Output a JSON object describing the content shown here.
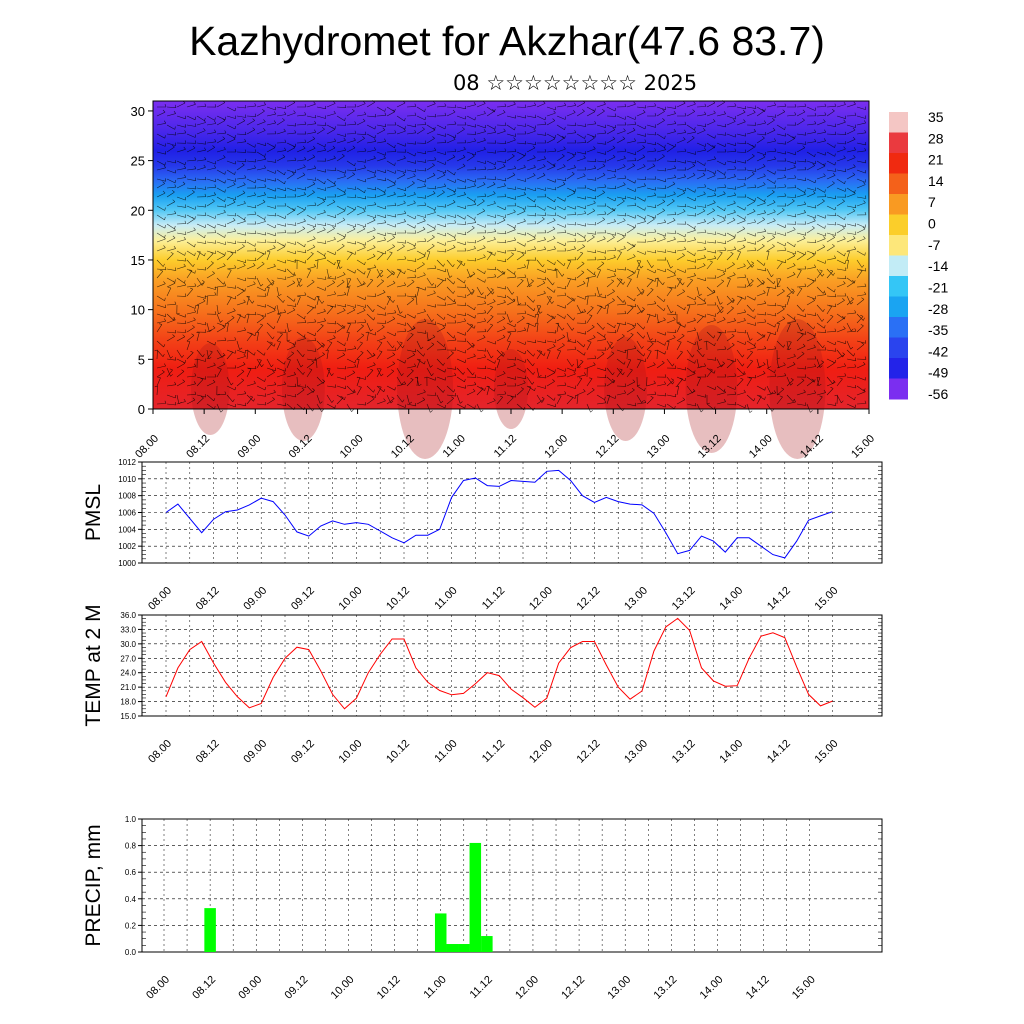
{
  "title": "Kazhydromet for Akzhar(47.6 83.7)",
  "subtitle": "08 ☆☆☆☆☆☆☆☆ 2025",
  "time_labels": [
    "08.00",
    "08.12",
    "09.00",
    "09.12",
    "10.00",
    "10.12",
    "11.00",
    "11.12",
    "12.00",
    "12.12",
    "13.00",
    "13.12",
    "14.00",
    "14.12",
    "15.00"
  ],
  "chart_data": [
    {
      "type": "heatmap",
      "name": "temperature-wind-cross-section",
      "x": "time (3-hourly, 08.00 to 15.00)",
      "ylim": [
        0,
        31
      ],
      "yticks": [
        0,
        5,
        10,
        15,
        20,
        25,
        30
      ],
      "colorbar": {
        "labels": [
          "35",
          "28",
          "21",
          "14",
          "7",
          "0",
          "-7",
          "-14",
          "-21",
          "-28",
          "-35",
          "-42",
          "-49",
          "-56"
        ],
        "colors": [
          "#f4c6c4",
          "#ea3a3f",
          "#f02a10",
          "#f4611a",
          "#f99a22",
          "#fbce2a",
          "#fde77a",
          "#c2ecf6",
          "#34c6f6",
          "#1aa4f2",
          "#2a70f5",
          "#2a44ee",
          "#2323e9",
          "#7b2ef0"
        ]
      },
      "level_colors": [
        [
          0,
          "#e4242c"
        ],
        [
          4,
          "#f01d12"
        ],
        [
          7,
          "#f34317"
        ],
        [
          10,
          "#f6741c"
        ],
        [
          13,
          "#fa9f24"
        ],
        [
          15,
          "#fdcd2c"
        ],
        [
          17,
          "#fbf09b"
        ],
        [
          18.5,
          "#c8ecf6"
        ],
        [
          20,
          "#52c8f5"
        ],
        [
          21.5,
          "#1aa0f2"
        ],
        [
          23,
          "#2a6af4"
        ],
        [
          24.5,
          "#2638ea"
        ],
        [
          26,
          "#2020e6"
        ],
        [
          28,
          "#4a27ea"
        ],
        [
          31,
          "#7b2ef0"
        ]
      ]
    },
    {
      "type": "line",
      "ylabel": "PMSL",
      "ylim": [
        1000,
        1012
      ],
      "yticks": [
        "1000",
        "1002",
        "1004",
        "1006",
        "1008",
        "1010",
        "1012"
      ],
      "color": "#0000ff",
      "x": [
        0,
        1,
        2,
        3,
        4,
        5,
        6,
        7,
        8,
        9,
        10,
        11,
        12,
        13,
        14,
        15,
        16,
        17,
        18,
        19,
        20,
        21,
        22,
        23,
        24,
        25,
        26,
        27,
        28,
        29,
        30,
        31,
        32,
        33,
        34,
        35,
        36,
        37,
        38,
        39,
        40,
        41,
        42,
        43,
        44,
        45,
        46,
        47,
        48,
        49,
        50,
        51,
        52,
        53,
        54,
        55,
        56
      ],
      "values": [
        1006.0,
        1007.0,
        1005.3,
        1003.6,
        1005.2,
        1006.1,
        1006.3,
        1006.9,
        1007.7,
        1007.3,
        1005.7,
        1003.7,
        1003.2,
        1004.4,
        1005.0,
        1004.6,
        1004.8,
        1004.6,
        1003.8,
        1003.0,
        1002.4,
        1003.3,
        1003.3,
        1004.0,
        1007.8,
        1009.8,
        1010.1,
        1009.2,
        1009.1,
        1009.8,
        1009.7,
        1009.6,
        1010.9,
        1011.0,
        1009.8,
        1008.0,
        1007.2,
        1007.8,
        1007.3,
        1007.0,
        1006.9,
        1005.9,
        1003.6,
        1001.1,
        1001.5,
        1003.2,
        1002.6,
        1001.3,
        1003.0,
        1003.0,
        1002.0,
        1001.0,
        1000.6,
        1002.6,
        1005.1,
        1005.6,
        1006.1
      ]
    },
    {
      "type": "line",
      "ylabel": "TEMP at 2 M",
      "ylim": [
        15,
        36
      ],
      "yticks": [
        "15.0",
        "18.0",
        "21.0",
        "24.0",
        "27.0",
        "30.0",
        "33.0",
        "36.0"
      ],
      "color": "#ff0000",
      "x": [
        0,
        1,
        2,
        3,
        4,
        5,
        6,
        7,
        8,
        9,
        10,
        11,
        12,
        13,
        14,
        15,
        16,
        17,
        18,
        19,
        20,
        21,
        22,
        23,
        24,
        25,
        26,
        27,
        28,
        29,
        30,
        31,
        32,
        33,
        34,
        35,
        36,
        37,
        38,
        39,
        40,
        41,
        42,
        43,
        44,
        45,
        46,
        47,
        48,
        49,
        50,
        51,
        52,
        53,
        54,
        55,
        56
      ],
      "values": [
        19.0,
        25.0,
        28.8,
        30.5,
        26.0,
        22.0,
        19.0,
        16.7,
        17.6,
        23.0,
        27.0,
        29.3,
        28.8,
        24.4,
        19.5,
        16.5,
        18.7,
        24.0,
        27.8,
        31.0,
        31.0,
        25.0,
        22.0,
        20.3,
        19.4,
        19.7,
        21.7,
        24.0,
        23.4,
        20.6,
        18.8,
        16.8,
        18.7,
        26.0,
        29.2,
        30.5,
        30.5,
        25.6,
        21.0,
        18.5,
        20.2,
        28.5,
        33.5,
        35.3,
        32.8,
        25.0,
        22.3,
        21.2,
        21.3,
        27.0,
        31.6,
        32.3,
        31.3,
        25.2,
        19.5,
        17.1,
        18.1
      ]
    },
    {
      "type": "bar",
      "ylabel": "PRECIP, mm",
      "ylim": [
        0,
        1.0
      ],
      "yticks": [
        "0.0",
        "0.2",
        "0.4",
        "0.6",
        "0.8",
        "1.0"
      ],
      "color": "#00ff00",
      "bars": [
        {
          "x": 4,
          "value": 0.33
        },
        {
          "x": 24,
          "value": 0.29
        },
        {
          "x": 25,
          "value": 0.06
        },
        {
          "x": 26,
          "value": 0.06
        },
        {
          "x": 27,
          "value": 0.82
        },
        {
          "x": 28,
          "value": 0.12
        }
      ]
    }
  ]
}
